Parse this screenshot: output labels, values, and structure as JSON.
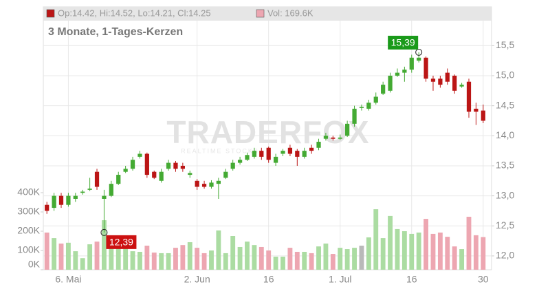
{
  "chart_data": {
    "type": "candlestick",
    "subtitle": "3 Monate, 1-Tages-Kerzen",
    "price_legend": "Op:14.42, Hi:14.52, Lo:14.21, Cl:14.25",
    "volume_legend": "Vol: 169.6K",
    "watermark": "TRADERFOX",
    "watermark_sub": "REALTIME STOCKS",
    "categories": [
      null,
      null,
      null,
      "6. Mai",
      null,
      null,
      null,
      null,
      null,
      null,
      null,
      null,
      null,
      null,
      null,
      null,
      null,
      null,
      null,
      null,
      null,
      "2. Jun",
      null,
      null,
      null,
      null,
      null,
      null,
      null,
      null,
      null,
      "16",
      null,
      null,
      null,
      null,
      null,
      null,
      null,
      null,
      null,
      "1. Jul",
      null,
      null,
      null,
      null,
      null,
      null,
      null,
      null,
      null,
      "16",
      null,
      null,
      null,
      null,
      null,
      null,
      null,
      null,
      null,
      "30"
    ],
    "open": [
      12.85,
      12.8,
      13.0,
      12.85,
      12.95,
      13.05,
      13.1,
      13.4,
      12.95,
      13.0,
      13.2,
      13.4,
      13.45,
      13.65,
      13.7,
      13.4,
      13.25,
      13.45,
      13.55,
      13.5,
      13.35,
      13.25,
      13.2,
      13.15,
      13.2,
      13.3,
      13.45,
      13.55,
      13.6,
      13.65,
      13.75,
      13.8,
      13.55,
      13.7,
      13.8,
      13.75,
      13.65,
      13.8,
      13.8,
      13.95,
      13.97,
      13.95,
      14.0,
      14.2,
      14.48,
      14.45,
      14.55,
      14.7,
      14.75,
      15.0,
      15.05,
      15.1,
      15.25,
      15.3,
      14.95,
      14.95,
      15.05,
      15.0,
      14.82,
      14.9,
      14.45,
      14.42
    ],
    "high": [
      12.9,
      13.05,
      13.05,
      13.05,
      13.05,
      13.1,
      13.3,
      13.45,
      13.1,
      13.25,
      13.4,
      13.5,
      13.65,
      13.75,
      13.72,
      13.42,
      13.45,
      13.6,
      13.58,
      13.55,
      13.42,
      13.28,
      13.25,
      13.26,
      13.3,
      13.45,
      13.6,
      13.65,
      13.72,
      13.8,
      13.8,
      13.82,
      13.7,
      13.78,
      13.85,
      13.78,
      13.8,
      13.85,
      13.95,
      14.05,
      14.0,
      14.02,
      14.25,
      14.5,
      14.52,
      14.6,
      14.72,
      14.9,
      15.05,
      15.12,
      15.15,
      15.35,
      15.39,
      15.32,
      15.0,
      15.0,
      15.12,
      15.02,
      14.88,
      14.95,
      14.55,
      14.52
    ],
    "low": [
      12.7,
      12.75,
      12.8,
      12.82,
      12.9,
      13.02,
      13.08,
      13.1,
      12.39,
      12.98,
      13.18,
      13.38,
      13.42,
      13.62,
      13.3,
      13.28,
      13.22,
      13.42,
      13.4,
      13.4,
      13.3,
      13.1,
      13.12,
      13.12,
      12.95,
      13.28,
      13.42,
      13.52,
      13.58,
      13.62,
      13.6,
      13.55,
      13.5,
      13.66,
      13.66,
      13.5,
      13.62,
      13.7,
      13.76,
      13.92,
      13.92,
      13.93,
      13.98,
      14.15,
      14.42,
      14.42,
      14.52,
      14.68,
      14.72,
      14.98,
      14.9,
      15.05,
      15.22,
      14.9,
      14.75,
      14.8,
      14.85,
      14.7,
      14.8,
      14.3,
      14.18,
      14.21
    ],
    "close": [
      12.75,
      13.0,
      12.85,
      13.0,
      13.0,
      13.07,
      13.12,
      13.15,
      13.0,
      13.2,
      13.35,
      13.45,
      13.6,
      13.7,
      13.35,
      13.3,
      13.4,
      13.55,
      13.45,
      13.45,
      13.38,
      13.15,
      13.15,
      13.22,
      13.25,
      13.4,
      13.55,
      13.6,
      13.68,
      13.75,
      13.65,
      13.6,
      13.65,
      13.75,
      13.7,
      13.65,
      13.75,
      13.75,
      13.9,
      14.0,
      13.95,
      13.97,
      14.2,
      14.45,
      14.48,
      14.55,
      14.65,
      14.85,
      15.0,
      15.05,
      15.1,
      15.3,
      15.3,
      14.95,
      14.9,
      14.85,
      14.9,
      14.75,
      14.85,
      14.4,
      14.4,
      14.25
    ],
    "volume": [
      193000,
      164000,
      136000,
      140000,
      96000,
      60000,
      132000,
      146000,
      257000,
      157000,
      114000,
      121000,
      96000,
      93000,
      125000,
      89000,
      86000,
      86000,
      114000,
      128000,
      143000,
      114000,
      86000,
      100000,
      204000,
      86000,
      175000,
      118000,
      146000,
      128000,
      118000,
      100000,
      68000,
      68000,
      114000,
      93000,
      93000,
      86000,
      121000,
      136000,
      82000,
      114000,
      107000,
      114000,
      125000,
      168000,
      314000,
      164000,
      279000,
      211000,
      200000,
      186000,
      193000,
      264000,
      186000,
      193000,
      171000,
      121000,
      107000,
      275000,
      179000,
      169600
    ],
    "ylim": [
      11.77,
      16.26
    ],
    "yticks": [
      {
        "value": 12.0,
        "label": "12,0"
      },
      {
        "value": 12.5,
        "label": "12,5"
      },
      {
        "value": 13.0,
        "label": "13,0"
      },
      {
        "value": 13.5,
        "label": "13,5"
      },
      {
        "value": 14.0,
        "label": "14,0"
      },
      {
        "value": 14.5,
        "label": "14,5"
      },
      {
        "value": 15.0,
        "label": "15,0"
      },
      {
        "value": 15.5,
        "label": "15,5"
      }
    ],
    "y2lim": [
      0,
      1400000
    ],
    "y2ticks": [
      {
        "value": 0,
        "label": "0K"
      },
      {
        "value": 100000,
        "label": "100K"
      },
      {
        "value": 200000,
        "label": "200K"
      },
      {
        "value": 300000,
        "label": "300K"
      },
      {
        "value": 400000,
        "label": "400K"
      }
    ],
    "annotations": [
      {
        "value": 15.39,
        "label": "15,39",
        "color": "#1a9a1a"
      },
      {
        "value": 12.39,
        "label": "12,39",
        "color": "#cc1111"
      }
    ],
    "up_color": "#44aa33",
    "down_color": "#bb1515",
    "up_volume_color": "#abdca2",
    "down_volume_color": "#eda6b1",
    "flat_volume_color": "#b9b9b9",
    "grid": true
  }
}
